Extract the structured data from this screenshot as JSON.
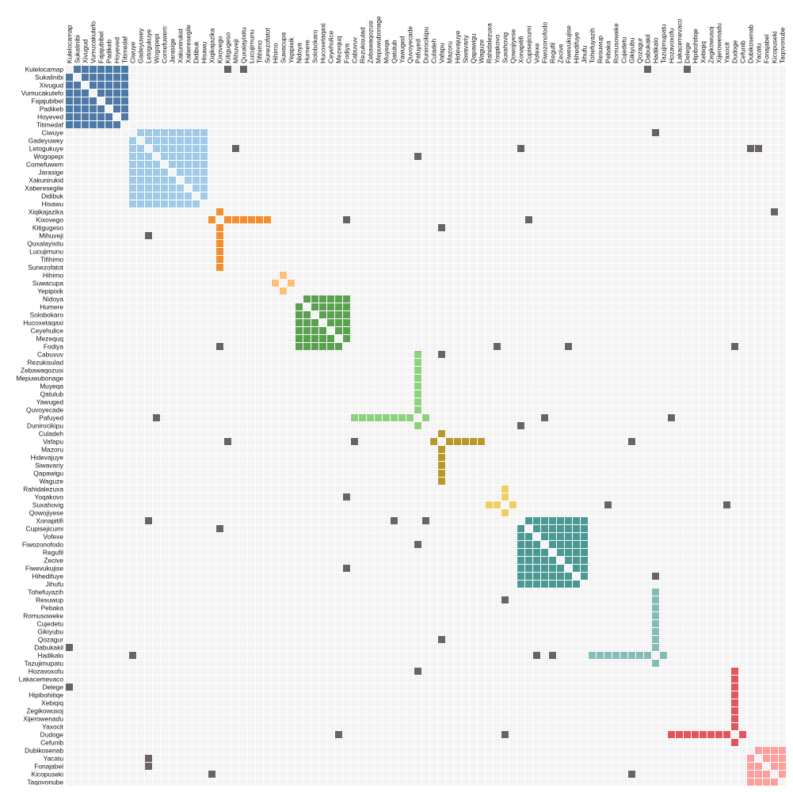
{
  "chart_data": {
    "type": "heatmap",
    "nodes": [
      "Kulelocamap",
      "Sukalinibi",
      "Xivugud",
      "Vumucakutefo",
      "Fajajubibel",
      "Padikeb",
      "Hoyeved",
      "Titimedaf",
      "Ciwuye",
      "Gadeyuwey",
      "Letogukuye",
      "Wogopepi",
      "Comefuwem",
      "Jarasige",
      "Xakunirukid",
      "Xaberesegile",
      "Didibuk",
      "Hisawu",
      "Xiqikajazika",
      "Kixovego",
      "Kitigugeso",
      "Mihuveji",
      "Quxalayixitu",
      "Lucujimunu",
      "Tifihimo",
      "Sunezofatot",
      "Hihimo",
      "Suwacupa",
      "Yepipixik",
      "Nidoya",
      "Humere",
      "Solobokaro",
      "Hucoxetaqaxi",
      "Ceyehulice",
      "Mezequq",
      "Fodiya",
      "Cabuvuv",
      "Rezukisulad",
      "Zebawaqozusi",
      "Mepuwubonage",
      "Muyeqa",
      "Qatulub",
      "Yawuged",
      "Quvoyecade",
      "Pafuyed",
      "Dunirocikipu",
      "Culadeh",
      "Vafapu",
      "Mazoru",
      "Hidevajuye",
      "Siwavariy",
      "Qapawigu",
      "Waguze",
      "Rahidalezuxa",
      "Yoqakovo",
      "Suxahovig",
      "Qowojiyese",
      "Xonapitifi",
      "Cupisejicumi",
      "Vofexe",
      "Fiwozonofodo",
      "Regufil",
      "Zecive",
      "Fiwevukujise",
      "Hihedifuye",
      "Jihufu",
      "Tohefuyazih",
      "Resuwup",
      "Pebaka",
      "Romusoweke",
      "Cujedetu",
      "Gikiyubu",
      "Qozagur",
      "Dabukakil",
      "Hadikalo",
      "Tazujimupatu",
      "Hozavoxofu",
      "Lakacemevaco",
      "Delege",
      "Hipibohitiqe",
      "Xebiqiq",
      "Zegikowusoj",
      "Xijerowenadu",
      "Yaxocit",
      "Dudoge",
      "Cefunib",
      "Dubikosenab",
      "Yacatu",
      "Fonajabel",
      "Kicopuseki",
      "Taqovonube"
    ],
    "groups": [
      {
        "start": 0,
        "end": 7,
        "kind": "clique",
        "color": "#4e79a7"
      },
      {
        "start": 8,
        "end": 17,
        "kind": "clique",
        "color": "#a0cbe8"
      },
      {
        "start": 18,
        "end": 25,
        "kind": "star",
        "hub": 19,
        "color": "#f28e2b"
      },
      {
        "start": 26,
        "end": 28,
        "kind": "star",
        "hub": 27,
        "color": "#ffbe7d"
      },
      {
        "start": 29,
        "end": 35,
        "kind": "clique",
        "color": "#59a14f"
      },
      {
        "start": 36,
        "end": 45,
        "kind": "star",
        "hub": 44,
        "color": "#8cd17d"
      },
      {
        "start": 46,
        "end": 52,
        "kind": "star",
        "hub": 47,
        "color": "#b6992d"
      },
      {
        "start": 53,
        "end": 56,
        "kind": "star",
        "hub": 55,
        "color": "#f1ce63"
      },
      {
        "start": 57,
        "end": 65,
        "kind": "clique",
        "color": "#499894"
      },
      {
        "start": 66,
        "end": 75,
        "kind": "star",
        "hub": 74,
        "color": "#86bcb6"
      },
      {
        "start": 76,
        "end": 85,
        "kind": "star",
        "hub": 84,
        "color": "#e15759"
      },
      {
        "start": 86,
        "end": 90,
        "kind": "clique",
        "color": "#ff9d9a"
      }
    ],
    "crossLinks": [
      [
        0,
        20
      ],
      [
        0,
        22
      ],
      [
        0,
        73
      ],
      [
        0,
        78
      ],
      [
        8,
        74
      ],
      [
        10,
        21
      ],
      [
        10,
        57
      ],
      [
        10,
        86
      ],
      [
        10,
        87
      ],
      [
        11,
        44
      ],
      [
        18,
        89
      ],
      [
        19,
        35
      ],
      [
        19,
        58
      ],
      [
        20,
        47
      ],
      [
        21,
        10
      ],
      [
        35,
        19
      ],
      [
        35,
        54
      ],
      [
        35,
        63
      ],
      [
        35,
        84
      ],
      [
        36,
        47
      ],
      [
        44,
        11
      ],
      [
        44,
        60
      ],
      [
        44,
        76
      ],
      [
        45,
        57
      ],
      [
        47,
        20
      ],
      [
        47,
        36
      ],
      [
        47,
        71
      ],
      [
        54,
        35
      ],
      [
        55,
        68
      ],
      [
        55,
        83
      ],
      [
        57,
        10
      ],
      [
        57,
        41
      ],
      [
        57,
        45
      ],
      [
        58,
        19
      ],
      [
        60,
        44
      ],
      [
        63,
        35
      ],
      [
        64,
        74
      ],
      [
        67,
        55
      ],
      [
        72,
        47
      ],
      [
        73,
        0
      ],
      [
        74,
        8
      ],
      [
        74,
        59
      ],
      [
        74,
        61
      ],
      [
        76,
        44
      ],
      [
        78,
        0
      ],
      [
        84,
        34
      ],
      [
        84,
        55
      ],
      [
        87,
        10
      ],
      [
        88,
        10
      ],
      [
        89,
        18
      ],
      [
        89,
        71
      ]
    ],
    "colors": {
      "background": "#f4f4f4",
      "grid": "#ffffff",
      "crossLink": "#6b6262"
    },
    "title": "",
    "xlabel": "",
    "ylabel": ""
  }
}
